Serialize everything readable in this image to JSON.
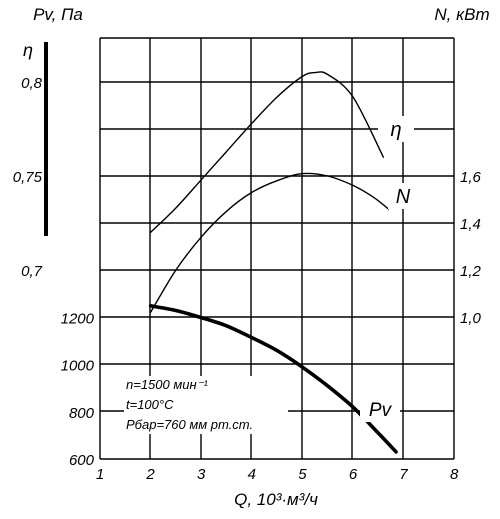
{
  "chart_data": {
    "type": "line",
    "axis_labels": {
      "pv": "Pv, Па",
      "n_power": "N, кВт",
      "eta": "η",
      "q": "Q, 10³·м³/ч"
    },
    "x_ticks": [
      "1",
      "2",
      "3",
      "4",
      "5",
      "6",
      "7",
      "8"
    ],
    "xlim": [
      1,
      8
    ],
    "pv_ticks": [
      "600",
      "800",
      "1000",
      "1200"
    ],
    "pv_range": [
      600,
      1300
    ],
    "eta_ticks": [
      "0,8",
      "0,75",
      "0,7"
    ],
    "eta_range": [
      0.68,
      0.82
    ],
    "n_ticks": [
      "1,0",
      "1,2",
      "1,4",
      "1,6"
    ],
    "n_range": [
      0.95,
      1.8
    ],
    "grid": true,
    "series": [
      {
        "name": "η",
        "axis": "eta",
        "x": [
          2.0,
          2.5,
          3.0,
          3.5,
          4.0,
          4.5,
          5.0,
          5.25,
          5.5,
          6.0,
          6.6
        ],
        "y": [
          0.72,
          0.733,
          0.748,
          0.763,
          0.778,
          0.792,
          0.803,
          0.805,
          0.804,
          0.792,
          0.76
        ]
      },
      {
        "name": "N",
        "axis": "n",
        "x": [
          2.0,
          2.5,
          3.0,
          3.5,
          4.0,
          4.5,
          5.0,
          5.5,
          6.0,
          6.4,
          6.7
        ],
        "y": [
          1.02,
          1.2,
          1.34,
          1.45,
          1.53,
          1.58,
          1.61,
          1.6,
          1.56,
          1.51,
          1.46
        ]
      },
      {
        "name": "Pv",
        "axis": "pv",
        "x": [
          2.0,
          2.5,
          3.0,
          3.5,
          4.0,
          4.5,
          5.0,
          5.5,
          6.0,
          6.5,
          6.85
        ],
        "y": [
          1250,
          1230,
          1200,
          1165,
          1115,
          1060,
          990,
          910,
          820,
          710,
          630
        ]
      }
    ],
    "conditions": [
      "n=1500 мин⁻¹",
      "t=100°C",
      "Рбар=760 мм рт.ст."
    ]
  }
}
